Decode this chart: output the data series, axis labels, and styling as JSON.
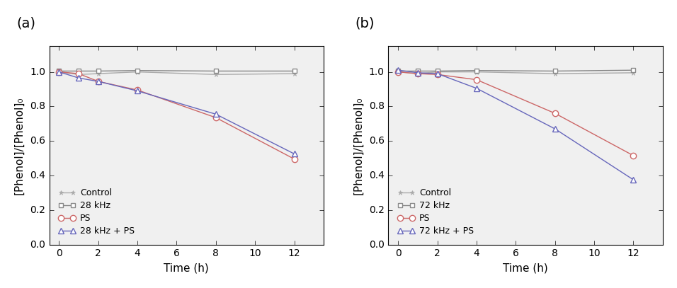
{
  "time": [
    0,
    1,
    2,
    4,
    8,
    12
  ],
  "panel_a": {
    "label": "(a)",
    "control": [
      1.0,
      0.985,
      0.99,
      1.0,
      0.985,
      0.99
    ],
    "us": [
      1.005,
      1.005,
      1.005,
      1.008,
      1.005,
      1.005
    ],
    "ps": [
      1.0,
      0.99,
      0.945,
      0.895,
      0.735,
      0.495
    ],
    "us_ps": [
      1.0,
      0.965,
      0.945,
      0.89,
      0.755,
      0.525
    ],
    "us_label": "28 kHz",
    "combo_label": "28 kHz + PS"
  },
  "panel_b": {
    "label": "(b)",
    "control": [
      1.0,
      0.99,
      1.0,
      1.0,
      0.99,
      0.995
    ],
    "us": [
      1.005,
      1.005,
      1.005,
      1.008,
      1.005,
      1.01
    ],
    "ps": [
      1.0,
      0.99,
      0.985,
      0.955,
      0.76,
      0.515
    ],
    "us_ps": [
      1.01,
      0.995,
      0.99,
      0.905,
      0.67,
      0.375
    ],
    "us_label": "72 kHz",
    "combo_label": "72 kHz + PS"
  },
  "color_control": "#aaaaaa",
  "color_us": "#888888",
  "color_ps": "#cc6666",
  "color_us_ps": "#6666bb",
  "ylabel": "[Phenol]/[Phenol]₀",
  "xlabel": "Time (h)",
  "ylim": [
    0.0,
    1.15
  ],
  "yticks": [
    0.0,
    0.2,
    0.4,
    0.6,
    0.8,
    1.0
  ],
  "xlim": [
    -0.5,
    13.5
  ],
  "xticks": [
    0,
    2,
    4,
    6,
    8,
    10,
    12
  ],
  "bg_color": "#f0f0f0",
  "fig_color": "#f0f0f0"
}
